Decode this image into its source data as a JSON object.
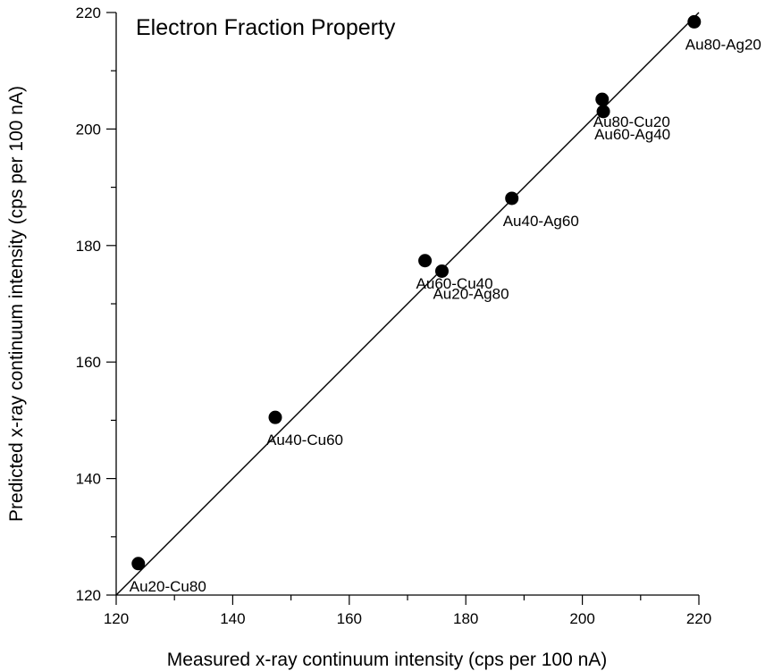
{
  "chart_data": {
    "type": "scatter",
    "title": "Electron Fraction Property",
    "xlabel": "Measured x-ray continuum intensity (cps per 100 nA)",
    "ylabel": "Predicted x-ray continuum intensity (cps per 100 nA)",
    "xlim": [
      120,
      220
    ],
    "ylim": [
      120,
      220
    ],
    "x_ticks": [
      120,
      140,
      160,
      180,
      200,
      220
    ],
    "y_ticks": [
      120,
      140,
      160,
      180,
      200,
      220
    ],
    "grid": false,
    "reference_line": {
      "from": [
        120,
        120
      ],
      "to": [
        220,
        220
      ]
    },
    "points": [
      {
        "label": "Au20-Cu80",
        "x": 123.8,
        "y": 125.4
      },
      {
        "label": "Au40-Cu60",
        "x": 147.3,
        "y": 150.5
      },
      {
        "label": "Au60-Cu40",
        "x": 173.0,
        "y": 177.4
      },
      {
        "label": "Au20-Ag80",
        "x": 175.9,
        "y": 175.6
      },
      {
        "label": "Au40-Ag60",
        "x": 187.9,
        "y": 188.1
      },
      {
        "label": "Au80-Cu20",
        "x": 203.4,
        "y": 205.1
      },
      {
        "label": "Au60-Ag40",
        "x": 203.6,
        "y": 203.0
      },
      {
        "label": "Au80-Ag20",
        "x": 219.2,
        "y": 218.4
      }
    ]
  }
}
